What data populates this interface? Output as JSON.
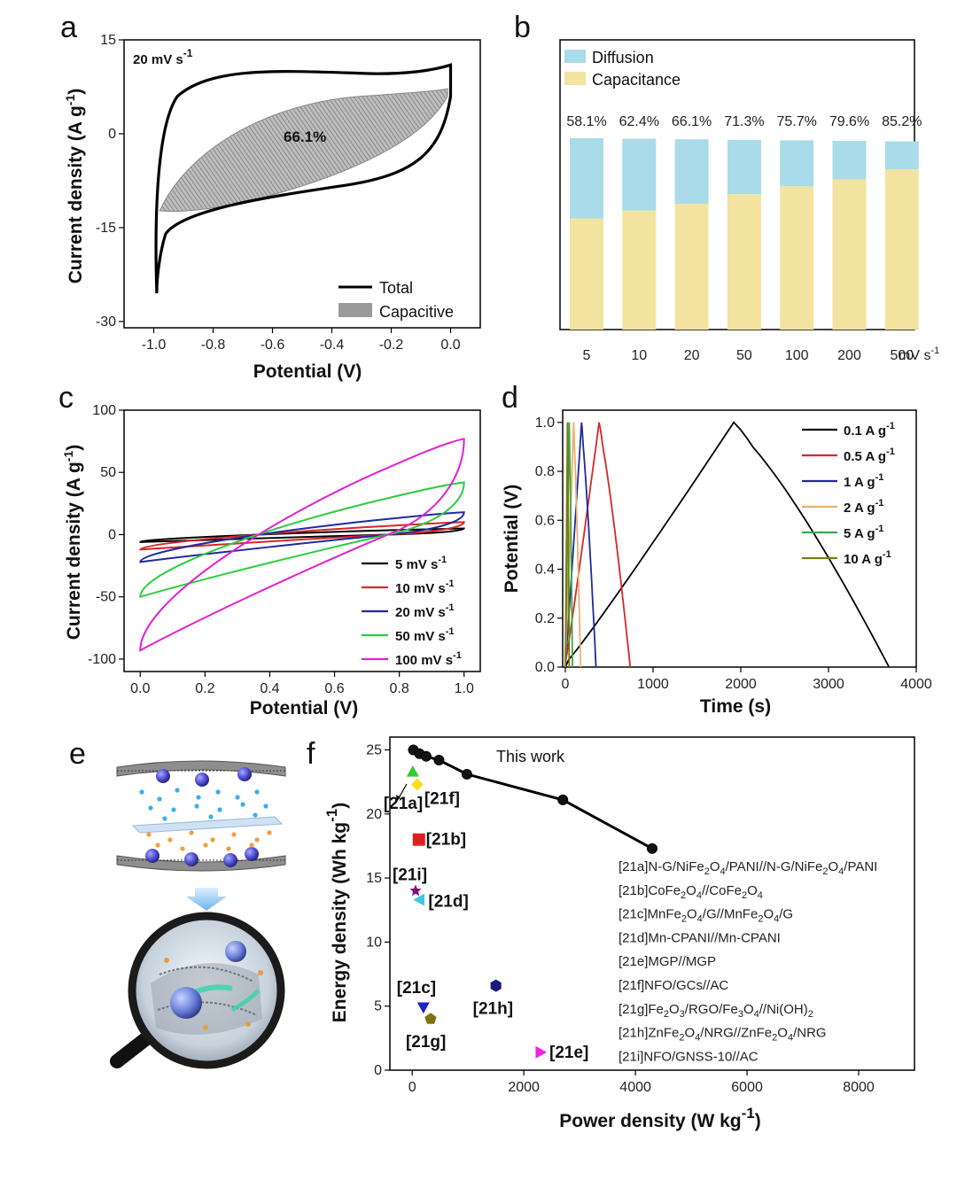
{
  "panels": {
    "a": {
      "letter": "a",
      "label": "20 mV s",
      "label_sup": "-1",
      "percent": "66.1%",
      "xlabel": "Potential (V)",
      "ylabel": "Current density (A g",
      "ylabel_sup": "-1",
      "ylabel_end": ")",
      "xlim": [
        -1.1,
        0.1
      ],
      "ylim": [
        -31,
        15
      ],
      "xticks": [
        "-1.0",
        "-0.8",
        "-0.6",
        "-0.4",
        "-0.2",
        "0.0"
      ],
      "xtick_values": [
        -1.0,
        -0.8,
        -0.6,
        -0.4,
        -0.2,
        0.0
      ],
      "yticks": [
        "15",
        "0",
        "-15",
        "-30"
      ],
      "ytick_values": [
        15,
        0,
        -15,
        -30
      ],
      "legend": [
        "Total",
        "Capacitive"
      ]
    },
    "b": {
      "letter": "b",
      "legend": [
        "Diffusion",
        "Capacitance"
      ],
      "colors": {
        "diffusion": "#a9dbe8",
        "capacitance": "#f3e3a0"
      },
      "categories": [
        "5",
        "10",
        "20",
        "50",
        "100",
        "200",
        "500"
      ],
      "unit": "mV s",
      "unit_sup": "-1",
      "capacitance_pct": [
        58.1,
        62.4,
        66.1,
        71.3,
        75.7,
        79.6,
        85.2
      ],
      "pct_labels": [
        "58.1%",
        "62.4%",
        "66.1%",
        "71.3%",
        "75.7%",
        "79.6%",
        "85.2%"
      ]
    },
    "c": {
      "letter": "c",
      "xlabel": "Potential (V)",
      "ylabel": "Current density (A g",
      "ylabel_sup": "-1",
      "ylabel_end": ")",
      "xlim": [
        -0.05,
        1.05
      ],
      "ylim": [
        -110,
        100
      ],
      "xticks": [
        "0.0",
        "0.2",
        "0.4",
        "0.6",
        "0.8",
        "1.0"
      ],
      "xtick_values": [
        0,
        0.2,
        0.4,
        0.6,
        0.8,
        1.0
      ],
      "yticks": [
        "100",
        "50",
        "0",
        "-50",
        "-100"
      ],
      "ytick_values": [
        100,
        50,
        0,
        -50,
        -100
      ],
      "series": [
        {
          "name": "5 mV s",
          "sup": "-1",
          "color": "#000000",
          "top_end": 5,
          "bot_start": -6
        },
        {
          "name": "10 mV s",
          "sup": "-1",
          "color": "#d62728",
          "top_end": 10,
          "bot_start": -12
        },
        {
          "name": "20 mV s",
          "sup": "-1",
          "color": "#1f2a9c",
          "top_end": 18,
          "bot_start": -22
        },
        {
          "name": "50 mV s",
          "sup": "-1",
          "color": "#2ecc40",
          "top_end": 42,
          "bot_start": -50
        },
        {
          "name": "100 mV s",
          "sup": "-1",
          "color": "#e020d0",
          "top_end": 77,
          "bot_start": -93
        }
      ]
    },
    "d": {
      "letter": "d",
      "xlabel": "Time (s)",
      "ylabel": "Potential (V)",
      "xlim": [
        -30,
        4000
      ],
      "ylim": [
        0,
        1.05
      ],
      "xticks": [
        "0",
        "1000",
        "2000",
        "3000",
        "4000"
      ],
      "xtick_values": [
        0,
        1000,
        2000,
        3000,
        4000
      ],
      "yticks": [
        "0.0",
        "0.2",
        "0.4",
        "0.6",
        "0.8",
        "1.0"
      ],
      "ytick_values": [
        0,
        0.2,
        0.4,
        0.6,
        0.8,
        1.0
      ],
      "series": [
        {
          "name": "0.1 A g",
          "sup": "-1",
          "color": "#000000",
          "t_peak": 1920,
          "t_end": 3690
        },
        {
          "name": "0.5 A g",
          "sup": "-1",
          "color": "#d62728",
          "t_peak": 385,
          "t_end": 740
        },
        {
          "name": "1 A g",
          "sup": "-1",
          "color": "#1f2a9c",
          "t_peak": 185,
          "t_end": 350
        },
        {
          "name": "2 A g",
          "sup": "-1",
          "color": "#e8b070",
          "t_peak": 95,
          "t_end": 175
        },
        {
          "name": "5 A g",
          "sup": "-1",
          "color": "#3aa84a",
          "t_peak": 45,
          "t_end": 82
        },
        {
          "name": "10 A g",
          "sup": "-1",
          "color": "#7a7a10",
          "t_peak": 25,
          "t_end": 45
        }
      ]
    },
    "e": {
      "letter": "e"
    },
    "f": {
      "letter": "f",
      "title": "This work",
      "xlabel": "Power density (W kg",
      "xlabel_sup": "-1",
      "xlabel_end": ")",
      "ylabel": "Energy density (Wh kg",
      "ylabel_sup": "-1",
      "ylabel_end": ")",
      "xlim": [
        -400,
        9000
      ],
      "ylim": [
        0,
        26
      ],
      "xticks": [
        "0",
        "2000",
        "4000",
        "6000",
        "8000"
      ],
      "xtick_values": [
        0,
        2000,
        4000,
        6000,
        8000
      ],
      "yticks": [
        "0",
        "5",
        "10",
        "15",
        "20",
        "25"
      ],
      "ytick_values": [
        0,
        5,
        10,
        15,
        20,
        25
      ],
      "this_work": {
        "x": [
          20,
          130,
          250,
          480,
          980,
          2700,
          4300
        ],
        "y": [
          25.0,
          24.7,
          24.5,
          24.2,
          23.1,
          21.1,
          17.3
        ]
      },
      "refs": [
        {
          "label": "[21a]",
          "x": 10,
          "y": 23.3,
          "color": "#33cc33",
          "marker": "triangle-up"
        },
        {
          "label": "[21b]",
          "x": 120,
          "y": 18.0,
          "color": "#e02020",
          "marker": "square"
        },
        {
          "label": "[21c]",
          "x": 200,
          "y": 4.9,
          "color": "#2020cc",
          "marker": "triangle-down"
        },
        {
          "label": "[21d]",
          "x": 130,
          "y": 13.3,
          "color": "#40c8e0",
          "marker": "triangle-left"
        },
        {
          "label": "[21e]",
          "x": 2300,
          "y": 1.4,
          "color": "#f020e0",
          "marker": "triangle-right"
        },
        {
          "label": "[21f]",
          "x": 90,
          "y": 22.3,
          "color": "#f8e020",
          "marker": "diamond"
        },
        {
          "label": "[21g]",
          "x": 330,
          "y": 4.0,
          "color": "#807010",
          "marker": "pentagon"
        },
        {
          "label": "[21h]",
          "x": 1500,
          "y": 6.6,
          "color": "#1a1a80",
          "marker": "hexagon"
        },
        {
          "label": "[21i]",
          "x": 60,
          "y": 14.0,
          "color": "#801080",
          "marker": "star"
        }
      ],
      "ref_list": [
        [
          "[21a]N-G/NiFe",
          "2",
          "O",
          "4",
          "/PANI//N-G/NiFe",
          "2",
          "O",
          "4",
          "/PANI"
        ],
        [
          "[21b]CoFe",
          "2",
          "O",
          "4",
          "//CoFe",
          "2",
          "O",
          "4"
        ],
        [
          "[21c]MnFe",
          "2",
          "O",
          "4",
          "/G//MnFe",
          "2",
          "O",
          "4",
          "/G"
        ],
        [
          "[21d]Mn-CPANI//Mn-CPANI"
        ],
        [
          "[21e]MGP//MGP"
        ],
        [
          "[21f]NFO/GCs//AC"
        ],
        [
          "[21g]Fe",
          "2",
          "O",
          "3",
          "/RGO/Fe",
          "3",
          "O",
          "4",
          "//Ni(OH)",
          "2"
        ],
        [
          "[21h]ZnFe",
          "2",
          "O",
          "4",
          "/NRG//ZnFe",
          "2",
          "O",
          "4",
          "/NRG"
        ],
        [
          "[21i]NFO/GNSS-10//AC"
        ]
      ]
    }
  }
}
